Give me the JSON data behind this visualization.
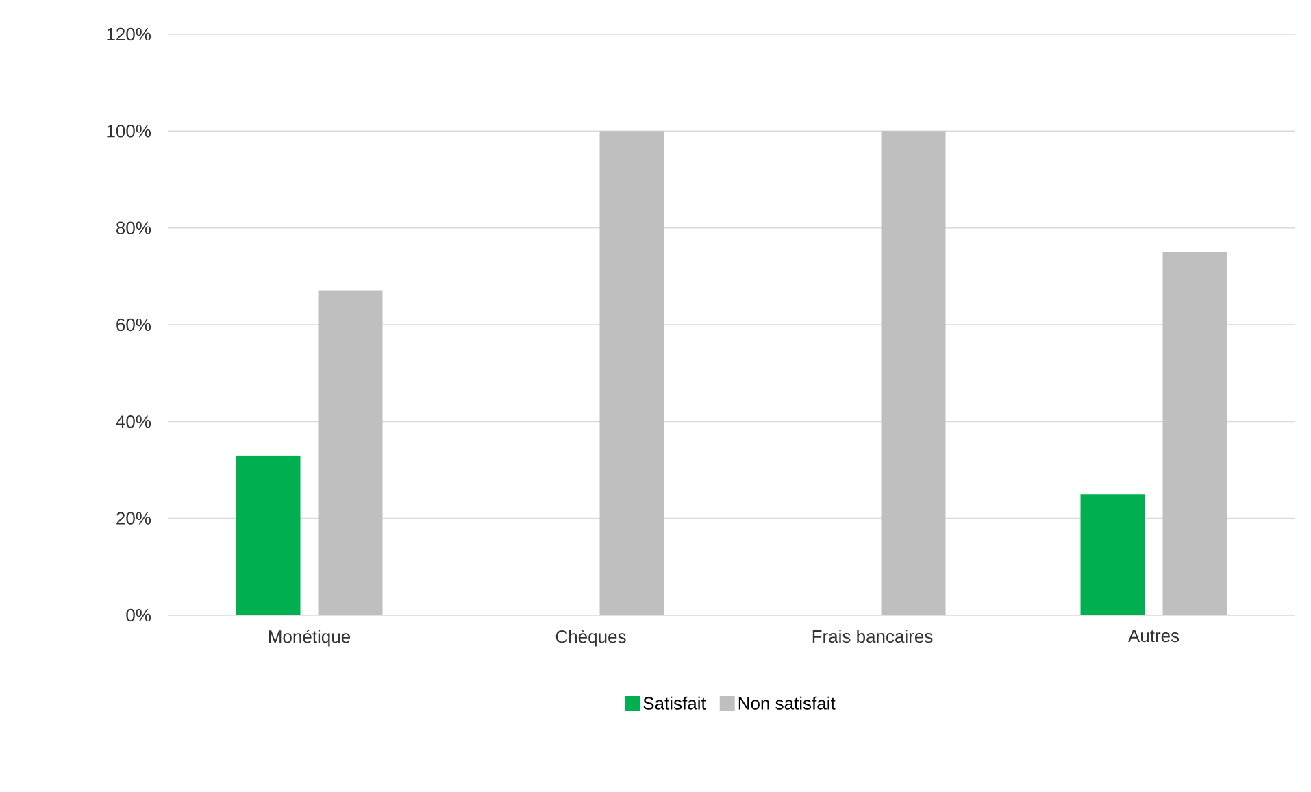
{
  "chart_data": {
    "type": "bar",
    "categories": [
      "Monétique",
      "Chèques",
      "Frais bancaires",
      "Autres"
    ],
    "series": [
      {
        "name": "Satisfait",
        "color": "#00b050",
        "values": [
          33,
          0,
          0,
          25
        ]
      },
      {
        "name": "Non satisfait",
        "color": "#bfbfbf",
        "values": [
          67,
          100,
          100,
          75
        ]
      }
    ],
    "ylim": [
      0,
      120
    ],
    "yticks": [
      {
        "value": 0,
        "label": "0%"
      },
      {
        "value": 20,
        "label": "20%"
      },
      {
        "value": 40,
        "label": "40%"
      },
      {
        "value": 60,
        "label": "60%"
      },
      {
        "value": 80,
        "label": "80%"
      },
      {
        "value": 100,
        "label": "100%"
      },
      {
        "value": 120,
        "label": "120%"
      }
    ],
    "grid": "y",
    "legend": "bottom"
  }
}
